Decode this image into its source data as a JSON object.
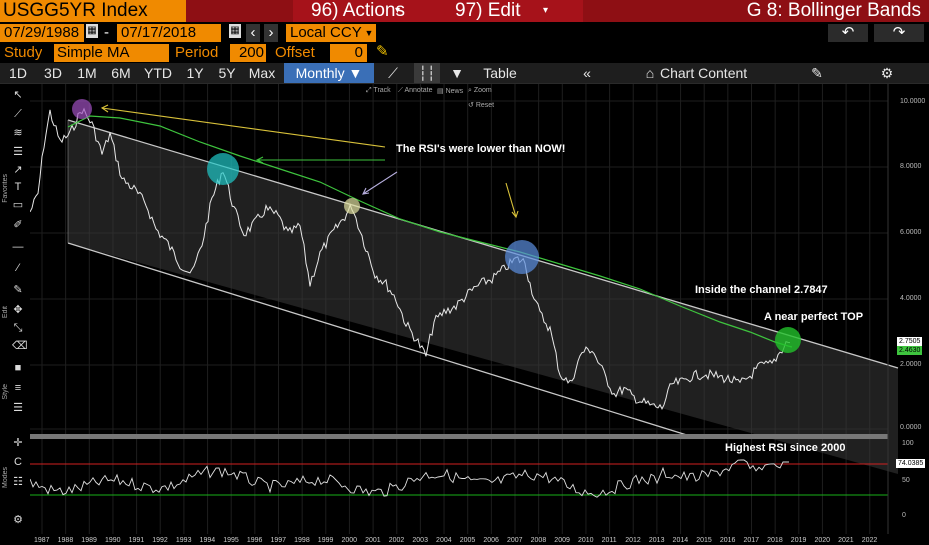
{
  "header": {
    "ticker": "USGG5YR Index",
    "actions": "96) Actions",
    "edit": "97) Edit",
    "title": "G 8: Bollinger Bands"
  },
  "dates": {
    "start": "07/29/1988",
    "separator": "-",
    "end": "07/17/2018",
    "currency": "Local CCY"
  },
  "study": {
    "study_label": "Study",
    "study_value": "Simple MA",
    "period_label": "Period",
    "period_value": "200",
    "offset_label": "Offset",
    "offset_value": "0"
  },
  "toolbar": {
    "ranges": [
      "1D",
      "3D",
      "1M",
      "6M",
      "YTD",
      "1Y",
      "5Y",
      "Max"
    ],
    "frequency": "Monthly ▼",
    "table": "Table",
    "chart_content": "Chart Content"
  },
  "mini_tools": {
    "track": "Track",
    "annotate": "Annotate",
    "news": "News",
    "zoom": "Zoom",
    "reset": "Reset"
  },
  "side_labels": {
    "favorites": "Favorites",
    "edit": "Edit",
    "style": "Style",
    "modes": "Modes"
  },
  "annotations": {
    "rsi_lower": "The RSI's were lower than NOW!",
    "inside_channel": "Inside the channel 2.7847",
    "near_top": "A near perfect TOP",
    "highest_rsi": "Highest RSI since 2000"
  },
  "price_axis": [
    "10.0000",
    "8.0000",
    "6.0000",
    "4.0000",
    "2.0000",
    "0.0000"
  ],
  "price_tags": {
    "last": "2.7505",
    "ma": "2.4630"
  },
  "rsi_axis": [
    "100",
    "50",
    "0"
  ],
  "rsi_tag": "74.0385",
  "years": [
    "1987",
    "1988",
    "1989",
    "1990",
    "1991",
    "1992",
    "1993",
    "1994",
    "1995",
    "1996",
    "1997",
    "1998",
    "1999",
    "2000",
    "2001",
    "2002",
    "2003",
    "2004",
    "2005",
    "2006",
    "2007",
    "2008",
    "2009",
    "2010",
    "2011",
    "2012",
    "2013",
    "2014",
    "2015",
    "2016",
    "2017",
    "2018",
    "2019",
    "2020",
    "2021",
    "2022"
  ],
  "colors": {
    "header_red": "#8e0f14",
    "field_orange": "#f08a00",
    "selected_blue": "#3a6fb7",
    "ma_green": "#3ec43e",
    "channel_line": "#c8c8c8",
    "arrow_yellow": "#d9c23a",
    "rsi_red": "#d02020",
    "rsi_green": "#19b019"
  }
}
